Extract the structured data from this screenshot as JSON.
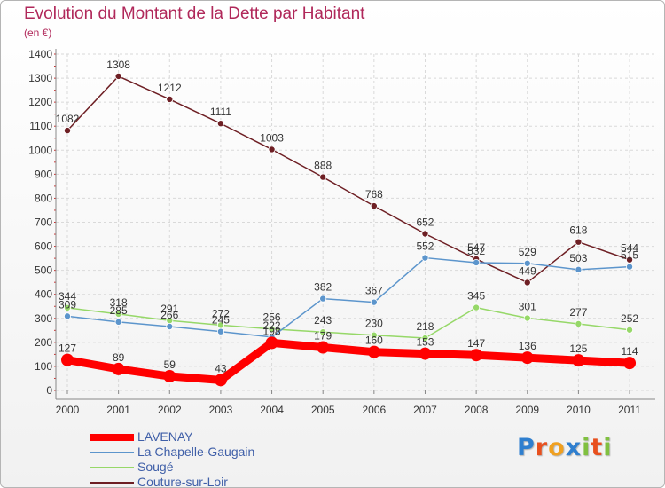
{
  "header": {
    "title": "Evolution du Montant de la Dette par Habitant",
    "subtitle": "(en €)"
  },
  "chart_data": {
    "type": "line",
    "title": "Evolution du Montant de la Dette par Habitant",
    "subtitle": "(en €)",
    "xlabel": "",
    "ylabel": "",
    "categories": [
      "2000",
      "2001",
      "2002",
      "2003",
      "2004",
      "2005",
      "2006",
      "2007",
      "2008",
      "2009",
      "2010",
      "2011"
    ],
    "y_ticks": [
      0,
      100,
      200,
      300,
      400,
      500,
      600,
      700,
      800,
      900,
      1000,
      1100,
      1200,
      1300,
      1400
    ],
    "ylim": [
      0,
      1400
    ],
    "grid": true,
    "legend_position": "bottom-left",
    "series": [
      {
        "name": "LAVENAY",
        "color": "#ff0000",
        "values": [
          127,
          89,
          59,
          43,
          198,
          179,
          160,
          153,
          147,
          136,
          125,
          114
        ]
      },
      {
        "name": "La Chapelle-Gaugain",
        "color": "#5c95cc",
        "values": [
          309,
          285,
          266,
          245,
          222,
          382,
          367,
          552,
          532,
          529,
          503,
          515
        ]
      },
      {
        "name": "Sougé",
        "color": "#96d868",
        "values": [
          344,
          318,
          291,
          272,
          256,
          243,
          230,
          218,
          345,
          301,
          277,
          252
        ]
      },
      {
        "name": "Couture-sur-Loir",
        "color": "#6e1f24",
        "values": [
          1082,
          1308,
          1212,
          1111,
          1003,
          888,
          768,
          652,
          547,
          449,
          618,
          544
        ]
      }
    ]
  },
  "brand": {
    "letters": [
      {
        "ch": "P",
        "color": "#2f7fcf"
      },
      {
        "ch": "r",
        "color": "#e8501e"
      },
      {
        "ch": "o",
        "color": "#f0a020"
      },
      {
        "ch": "x",
        "color": "#2f7fcf"
      },
      {
        "ch": "i",
        "color": "#80c040"
      },
      {
        "ch": "t",
        "color": "#e8501e"
      },
      {
        "ch": "i",
        "color": "#80c040"
      }
    ]
  }
}
